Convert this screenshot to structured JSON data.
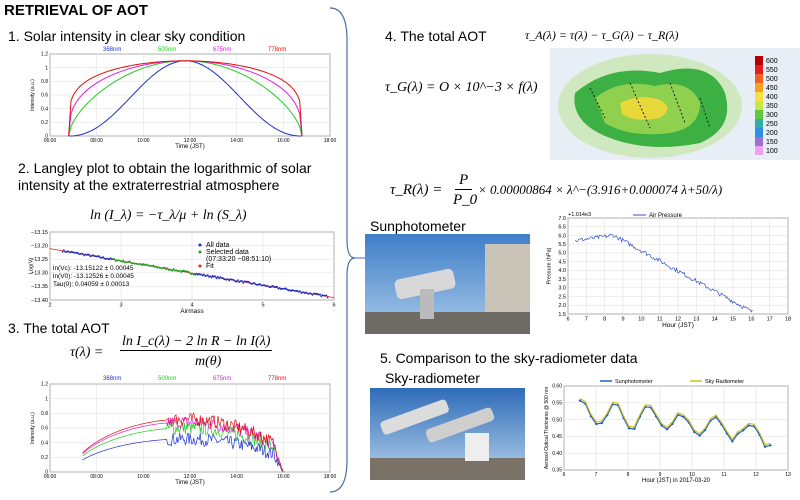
{
  "title": "RETRIEVAL OF AOT",
  "step1": {
    "heading": "1. Solar intensity in clear sky condition",
    "chart": {
      "legend": [
        "368nm",
        "500nm",
        "675nm",
        "778nm"
      ],
      "y_label": "Intensity (a.u.)",
      "x_label": "Time (JST)",
      "yticks": [
        "0",
        "0.2",
        "0.4",
        "0.6",
        "0.8",
        "1",
        "1.2"
      ],
      "xticks": [
        "06:00",
        "08:00",
        "10:00",
        "12:00",
        "14:00",
        "16:00",
        "18:00"
      ]
    }
  },
  "step2": {
    "heading": "2. Langley plot to obtain the logarithmic of solar intensity at the extraterrestrial atmosphere",
    "equation": "ln (I_λ) = −τ_λ/μ + ln (S_λ)",
    "chart": {
      "legend": [
        "All data",
        "Selected data",
        "(07:33:20 −08:51:10)",
        "Fit"
      ],
      "y_label": "Log(V)",
      "x_label": "Airmass",
      "yticks": [
        "−13.40",
        "−13.35",
        "−13.30",
        "−13.25",
        "−13.20",
        "−13.15"
      ],
      "xticks": [
        "2",
        "3",
        "4",
        "5",
        "6"
      ],
      "stats": [
        "ln(Vc): -13.15122 ±   0.00045",
        "ln(V0): -13.12526 ±   0.00045",
        "Tau(0):  0.04059 ±   0.00013"
      ]
    }
  },
  "step3": {
    "heading": "3. The total AOT",
    "equation_left": "τ(λ) =",
    "equation_num": "ln I_c(λ) − 2 ln R − ln I(λ)",
    "equation_den": "m(θ)",
    "chart": {
      "legend": [
        "368nm",
        "500nm",
        "675nm",
        "778nm"
      ],
      "y_label": "Intensity (a.u.)",
      "x_label": "Time (JST)",
      "yticks": [
        "0",
        "0.2",
        "0.4",
        "0.6",
        "0.8",
        "1",
        "1.2"
      ],
      "xticks": [
        "06:00",
        "08:00",
        "10:00",
        "12:00",
        "14:00",
        "16:00",
        "18:00"
      ]
    }
  },
  "step4": {
    "heading": "4. The total AOT",
    "equation_total": "τ_A(λ) = τ(λ) − τ_G(λ) − τ_R(λ)",
    "equation_gas": "τ_G(λ) = O × 10^−3 × f(λ)",
    "map_scale": [
      "600",
      "550",
      "500",
      "450",
      "400",
      "350",
      "300",
      "250",
      "200",
      "150",
      "100"
    ],
    "equation_rayleigh_left": "τ_R(λ) =",
    "equation_rayleigh_num": "P",
    "equation_rayleigh_den": "P_0",
    "equation_rayleigh_right": "× 0.00000864 × λ^−(3.916+0.000074 λ+50/λ)"
  },
  "sunphotometer": {
    "label": "Sunphotometer",
    "chart": {
      "legend": "Air Pressure",
      "y_label": "Pressure (hPa)",
      "x_label": "Hour (JST)",
      "offset": "+1.014e3",
      "yticks": [
        "1.5",
        "2.0",
        "2.5",
        "3.0",
        "3.5",
        "4.0",
        "4.5",
        "5.0",
        "5.5",
        "6.0",
        "6.5",
        "7.0"
      ],
      "xticks": [
        "6",
        "7",
        "8",
        "9",
        "10",
        "11",
        "12",
        "13",
        "14",
        "15",
        "16",
        "17",
        "18"
      ]
    }
  },
  "step5": {
    "heading": "5. Comparison to the sky-radiometer data",
    "label": "Sky-radiometer",
    "chart": {
      "legend": [
        "Sunphotometer",
        "Sky Radiometer"
      ],
      "y_label": "Aerosol Optical Thickness @ 500 nm",
      "x_label": "Hour (JST) in 2017-03-20",
      "yticks": [
        "0.35",
        "0.40",
        "0.45",
        "0.50",
        "0.55",
        "0.60"
      ],
      "xticks": [
        "6",
        "7",
        "8",
        "9",
        "10",
        "11",
        "12",
        "13"
      ]
    }
  }
}
